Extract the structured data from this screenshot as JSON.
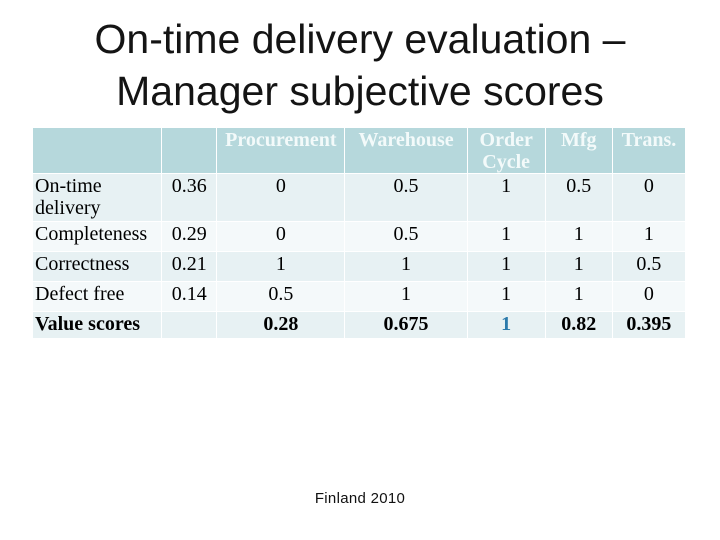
{
  "slide": {
    "title_line1": "On-time delivery evaluation –",
    "title_line2": "Manager subjective scores",
    "footer": "Finland 2010"
  },
  "table": {
    "column_headers": [
      "Procurement",
      "Warehouse",
      "Order Cycle",
      "Mfg",
      "Trans."
    ],
    "rows": [
      {
        "label": "On-time delivery",
        "weight": "0.36",
        "values": [
          "0",
          "0.5",
          "1",
          "0.5",
          "0"
        ]
      },
      {
        "label": "Completeness",
        "weight": "0.29",
        "values": [
          "0",
          "0.5",
          "1",
          "1",
          "1"
        ]
      },
      {
        "label": "Correctness",
        "weight": "0.21",
        "values": [
          "1",
          "1",
          "1",
          "1",
          "0.5"
        ]
      },
      {
        "label": "Defect free",
        "weight": "0.14",
        "values": [
          "0.5",
          "1",
          "1",
          "1",
          "0"
        ]
      },
      {
        "label": "Value scores",
        "weight": "",
        "values": [
          "0.28",
          "0.675",
          "1",
          "0.82",
          "0.395"
        ]
      }
    ]
  },
  "colors": {
    "header_bg": "#b6d8dc",
    "header_text": "#f3fafa",
    "row_odd": "#e7f1f3",
    "row_even": "#f4f9fa",
    "value_highlight": "#2b7aab"
  }
}
